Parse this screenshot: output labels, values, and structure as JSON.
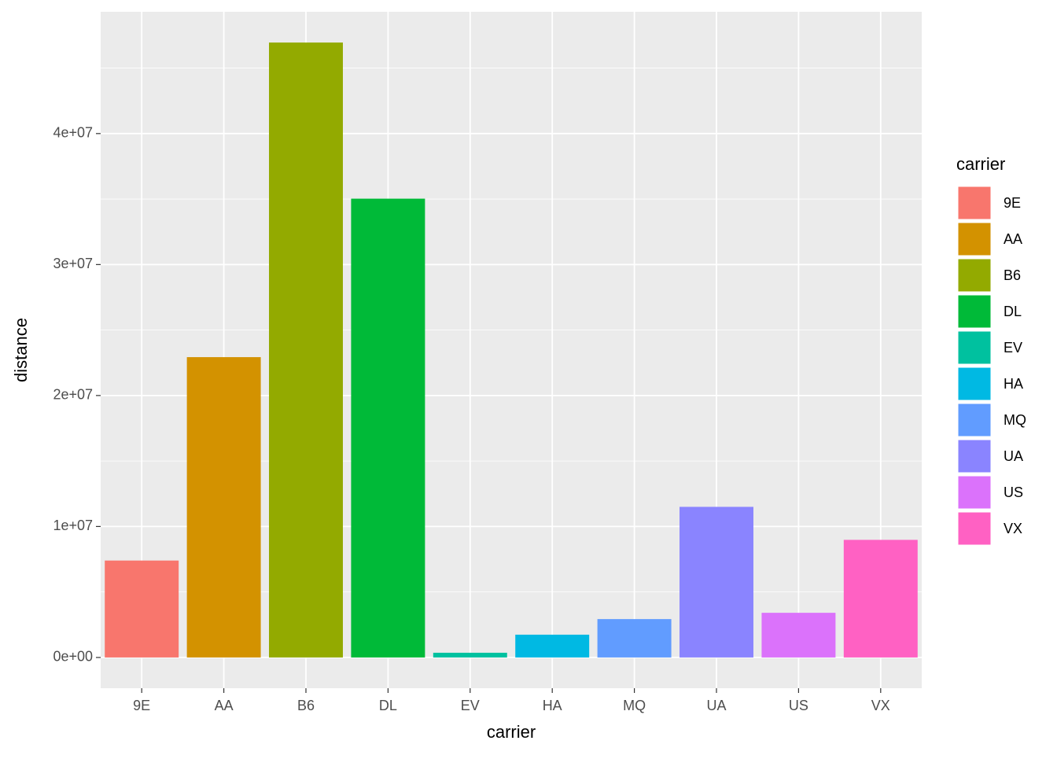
{
  "chart_data": {
    "type": "bar",
    "x_label": "carrier",
    "y_label": "distance",
    "legend_title": "carrier",
    "categories": [
      "9E",
      "AA",
      "B6",
      "DL",
      "EV",
      "HA",
      "MQ",
      "UA",
      "US",
      "VX"
    ],
    "values": [
      7400000,
      22930000,
      46950000,
      35030000,
      360000,
      1740000,
      2930000,
      11500000,
      3410000,
      8980000
    ],
    "colors": [
      "#F8766D",
      "#D39200",
      "#93AA00",
      "#00BA38",
      "#00C19F",
      "#00B9E3",
      "#619CFF",
      "#8A84FF",
      "#DB72FB",
      "#FF61C3"
    ],
    "ylim": [
      -2347500,
      49297500
    ],
    "yticks": [
      {
        "value": 0,
        "label": "0e+00"
      },
      {
        "value": 10000000,
        "label": "1e+07"
      },
      {
        "value": 20000000,
        "label": "2e+07"
      },
      {
        "value": 30000000,
        "label": "3e+07"
      },
      {
        "value": 40000000,
        "label": "4e+07"
      }
    ],
    "grid": true,
    "legend": "right"
  }
}
